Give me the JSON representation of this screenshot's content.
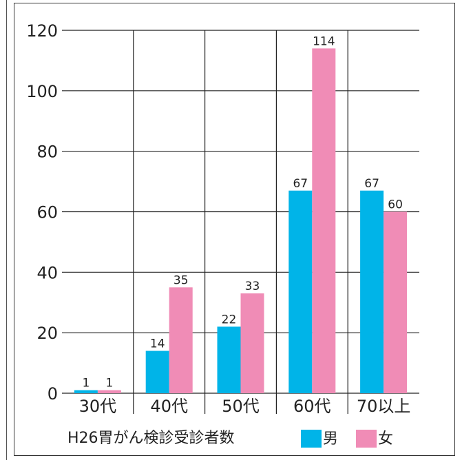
{
  "chart_data": {
    "type": "bar",
    "categories": [
      "30代",
      "40代",
      "50代",
      "60代",
      "70以上"
    ],
    "series": [
      {
        "name": "男",
        "values": [
          1,
          14,
          22,
          67,
          67
        ],
        "color": "#00b4e8"
      },
      {
        "name": "女",
        "values": [
          1,
          35,
          33,
          114,
          60
        ],
        "color": "#f08cb6"
      }
    ],
    "data_labels": [
      [
        "1",
        "14",
        "22",
        "67",
        "67"
      ],
      [
        "1",
        "35",
        "33",
        "114",
        "60"
      ]
    ],
    "y_ticks": [
      0,
      20,
      40,
      60,
      80,
      100,
      120
    ],
    "ylim": [
      0,
      120
    ],
    "title": "H26胃がん検診受診者数",
    "grid": true,
    "legend_position": "bottom"
  }
}
